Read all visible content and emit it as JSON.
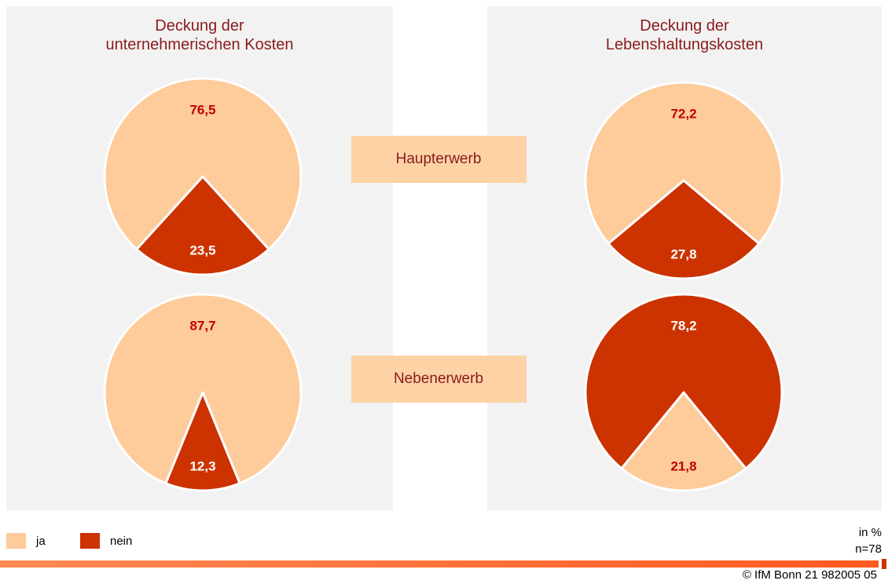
{
  "columns": [
    "Deckung der\nunternehmerischen Kosten",
    "Deckung der\nLebenshaltungskosten"
  ],
  "rows": [
    "Haupterwerb",
    "Nebenerwerb"
  ],
  "chart_data": [
    {
      "type": "pie",
      "categories": [
        "ja",
        "nein"
      ],
      "values": [
        76.5,
        23.5
      ],
      "value_labels": [
        "76,5",
        "23,5"
      ],
      "colors": [
        "#fecb9a",
        "#cc3300"
      ]
    },
    {
      "type": "pie",
      "categories": [
        "ja",
        "nein"
      ],
      "values": [
        72.2,
        27.8
      ],
      "value_labels": [
        "72,2",
        "27,8"
      ],
      "colors": [
        "#fecb9a",
        "#cc3300"
      ]
    },
    {
      "type": "pie",
      "categories": [
        "ja",
        "nein"
      ],
      "values": [
        87.7,
        12.3
      ],
      "value_labels": [
        "87,7",
        "12,3"
      ],
      "colors": [
        "#fecb9a",
        "#cc3300"
      ]
    },
    {
      "type": "pie",
      "categories": [
        "ja",
        "nein"
      ],
      "values": [
        21.8,
        78.2
      ],
      "value_labels": [
        "21,8",
        "78,2"
      ],
      "colors": [
        "#fecb9a",
        "#cc3300"
      ]
    }
  ],
  "unit_note": "in %",
  "sample_note": "n=78",
  "footer": "© IfM Bonn 21 982005 05"
}
